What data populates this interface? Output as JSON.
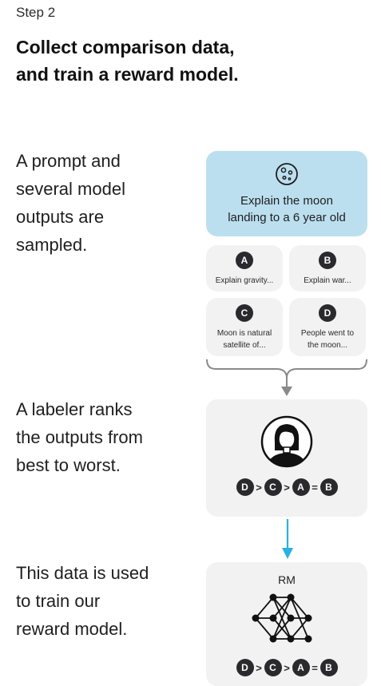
{
  "step_label": "Step 2",
  "headline": {
    "line1": "Collect comparison data,",
    "line2": "and train a reward model."
  },
  "descriptions": {
    "sampled": [
      "A prompt and",
      "several model",
      "outputs are",
      "sampled."
    ],
    "ranked": [
      "A labeler ranks",
      "the outputs from",
      "best to worst."
    ],
    "trained": [
      "This data is used",
      "to train our",
      "reward model."
    ]
  },
  "prompt": {
    "icon": "moon-icon",
    "line1": "Explain the moon",
    "line2": "landing to a 6 year old"
  },
  "outputs": [
    {
      "letter": "A",
      "lines": [
        "Explain gravity..."
      ]
    },
    {
      "letter": "B",
      "lines": [
        "Explain war..."
      ]
    },
    {
      "letter": "C",
      "lines": [
        "Moon is natural",
        "satellite of..."
      ]
    },
    {
      "letter": "D",
      "lines": [
        "People went to",
        "the moon..."
      ]
    }
  ],
  "labeler": {
    "icon": "person-icon",
    "ranking": [
      {
        "letter": "D"
      },
      {
        "op": ">"
      },
      {
        "letter": "C"
      },
      {
        "op": ">"
      },
      {
        "letter": "A"
      },
      {
        "op": "="
      },
      {
        "letter": "B"
      }
    ]
  },
  "reward_model": {
    "label": "RM",
    "icon": "neural-network-icon",
    "ranking": [
      {
        "letter": "D"
      },
      {
        "op": ">"
      },
      {
        "letter": "C"
      },
      {
        "op": ">"
      },
      {
        "letter": "A"
      },
      {
        "op": "="
      },
      {
        "letter": "B"
      }
    ]
  },
  "colors": {
    "prompt_bg": "#bcdff0",
    "card_bg": "#f2f2f2",
    "badge": "#2a2a2e",
    "arrow_gray": "#8a8a8a",
    "arrow_blue": "#29b1e0"
  }
}
